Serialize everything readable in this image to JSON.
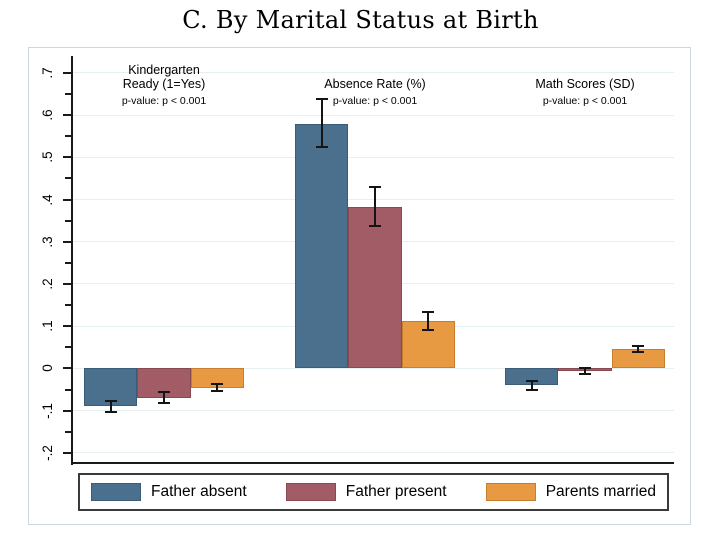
{
  "chart_data": {
    "type": "bar",
    "title": "C. By Marital Status at Birth",
    "groups": [
      {
        "label": "Kindergarten\nReady (1=Yes)",
        "p_value": "p-value: p < 0.001"
      },
      {
        "label": "Absence Rate (%)",
        "p_value": "p-value: p < 0.001"
      },
      {
        "label": "Math Scores (SD)",
        "p_value": "p-value: p < 0.001"
      }
    ],
    "series": [
      {
        "name": "Father absent",
        "color": "#4a708e",
        "border_color": "#3a5c77",
        "values": [
          -0.09,
          0.58,
          -0.04
        ],
        "ci_low": [
          -0.104,
          0.525,
          -0.051
        ],
        "ci_high": [
          -0.076,
          0.637,
          -0.029
        ]
      },
      {
        "name": "Father present",
        "color": "#a25c65",
        "border_color": "#874a52",
        "values": [
          -0.07,
          0.383,
          -0.006
        ],
        "ci_low": [
          -0.083,
          0.337,
          -0.014
        ],
        "ci_high": [
          -0.057,
          0.429,
          0.002
        ]
      },
      {
        "name": "Parents married",
        "color": "#e89a43",
        "border_color": "#c67f2f",
        "values": [
          -0.046,
          0.113,
          0.046
        ],
        "ci_low": [
          -0.054,
          0.092,
          0.039
        ],
        "ci_high": [
          -0.038,
          0.134,
          0.053
        ]
      }
    ],
    "y_tick_values": [
      0.7,
      0.6,
      0.5,
      0.4,
      0.3,
      0.2,
      0.1,
      0,
      -0.1,
      -0.2
    ],
    "y_tick_labels": [
      ".7",
      ".6",
      ".5",
      ".4",
      ".3",
      ".2",
      ".1",
      "0",
      "-.1",
      "-.2"
    ],
    "ylim": [
      -0.224,
      0.74
    ],
    "grid": true,
    "minor_ticks": true,
    "error_bars": true,
    "legend_position": "bottom",
    "colors": {
      "grid": "#e6eff1",
      "axis": "#1a1a1a",
      "frame": "#ccd8db",
      "error_bar": "#141414",
      "background": "#ffffff"
    }
  }
}
